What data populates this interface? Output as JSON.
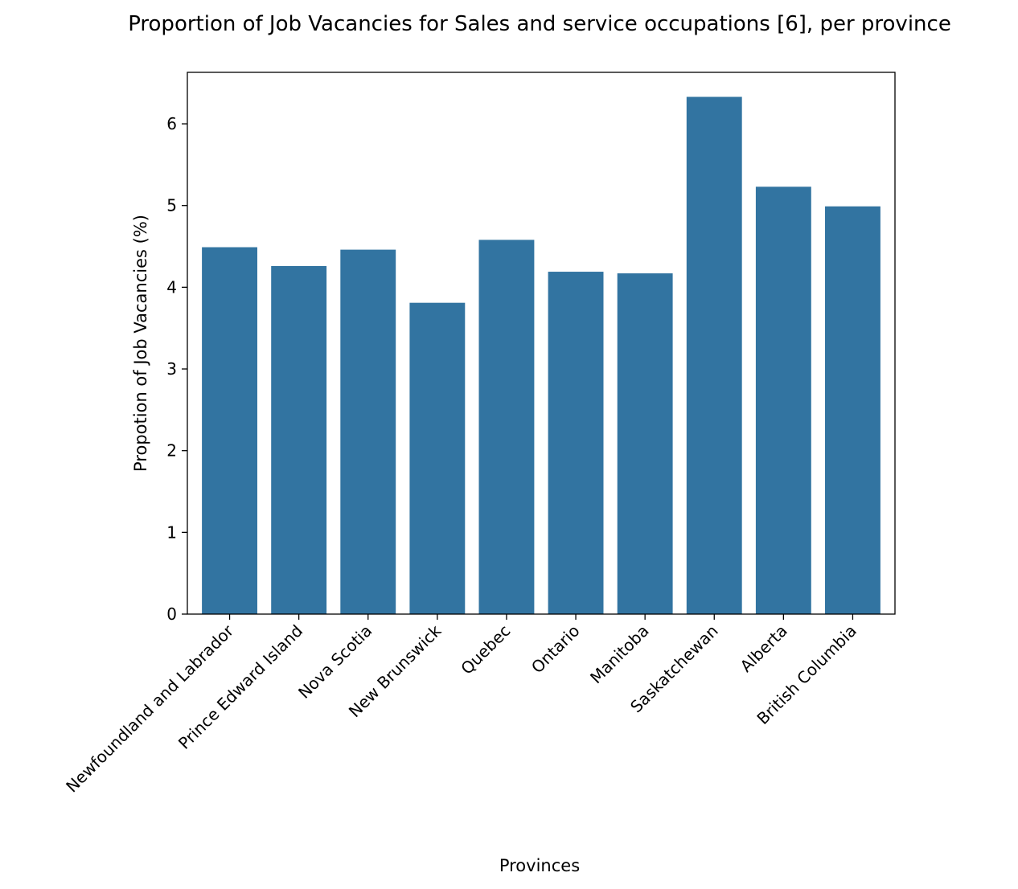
{
  "chart_data": {
    "type": "bar",
    "title": "Proportion of Job Vacancies for Sales and service occupations [6], per province",
    "xlabel": "Provinces",
    "ylabel": "Propotion of Job Vacancies (%)",
    "categories": [
      "Newfoundland and Labrador",
      "Prince Edward Island",
      "Nova Scotia",
      "New Brunswick",
      "Quebec",
      "Ontario",
      "Manitoba",
      "Saskatchewan",
      "Alberta",
      "British Columbia"
    ],
    "values": [
      4.49,
      4.26,
      4.46,
      3.81,
      4.58,
      4.19,
      4.17,
      6.33,
      5.23,
      4.99
    ],
    "ylim": [
      0,
      6.63
    ],
    "yticks": [
      0,
      1,
      2,
      3,
      4,
      5,
      6
    ],
    "bar_color": "#3274a1",
    "grid": false,
    "legend": "none"
  }
}
